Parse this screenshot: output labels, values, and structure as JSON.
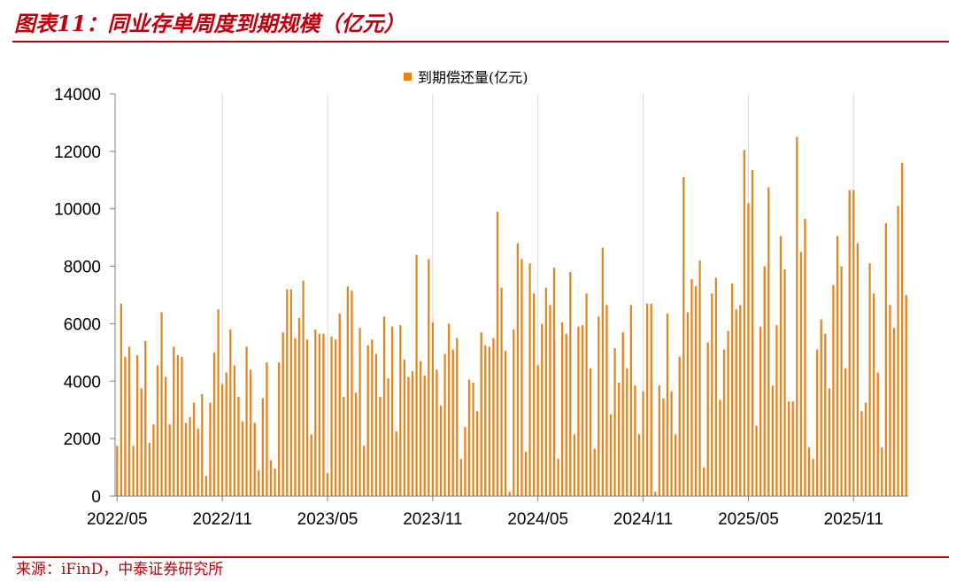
{
  "figure": {
    "title": "图表11：同业存单周度到期规模（亿元）",
    "source": "来源：iFinD，中泰证券研究所"
  },
  "colors": {
    "bar": "#e8841c",
    "accent": "#c0000c",
    "grid": "#d9d9d9",
    "axis": "#808080"
  },
  "chart_data": {
    "type": "bar",
    "legend": {
      "label": "到期偿还量(亿元)",
      "position": "top"
    },
    "grid": "vertical",
    "ylim": [
      0,
      14000
    ],
    "yticks": [
      "0",
      "2000",
      "4000",
      "6000",
      "8000",
      "10000",
      "12000",
      "14000"
    ],
    "xtick_labels": [
      "2022/05",
      "2022/11",
      "2023/05",
      "2023/11",
      "2024/05",
      "2024/11",
      "2025/05",
      "2025/11"
    ],
    "xtick_index": [
      0,
      26,
      52,
      78,
      104,
      130,
      156,
      182
    ],
    "series": [
      {
        "name": "到期偿还量(亿元)",
        "values": [
          1750,
          6700,
          4850,
          5200,
          1750,
          4900,
          3750,
          5400,
          1850,
          2500,
          4550,
          6400,
          4150,
          2500,
          5200,
          4900,
          4850,
          2550,
          2750,
          3250,
          2350,
          3550,
          700,
          3250,
          5000,
          6500,
          3900,
          4300,
          5800,
          4550,
          3450,
          2600,
          5200,
          4400,
          2550,
          900,
          3400,
          4650,
          1250,
          950,
          4650,
          5700,
          7200,
          7200,
          5500,
          6200,
          7500,
          5450,
          2150,
          5800,
          5650,
          5650,
          800,
          5550,
          5450,
          6350,
          3450,
          7300,
          7150,
          3600,
          5850,
          1750,
          5250,
          5450,
          4950,
          3450,
          6250,
          4100,
          5900,
          2250,
          5950,
          4750,
          4150,
          4350,
          8400,
          4700,
          4200,
          8250,
          6050,
          4400,
          3150,
          4950,
          6000,
          5100,
          5500,
          1300,
          2400,
          4050,
          3950,
          2950,
          5700,
          5250,
          5200,
          5500,
          9900,
          7250,
          5050,
          150,
          5800,
          8800,
          8250,
          1550,
          8100,
          7050,
          4550,
          6000,
          7250,
          6650,
          7950,
          1300,
          6050,
          5650,
          7800,
          2150,
          5900,
          5950,
          7050,
          4450,
          1650,
          6250,
          8650,
          6650,
          2850,
          5150,
          3950,
          5700,
          4450,
          6650,
          3850,
          2150,
          3650,
          6700,
          6700,
          150,
          3850,
          3400,
          6350,
          3650,
          2150,
          4850,
          11100,
          6400,
          7550,
          7300,
          8200,
          1000,
          5350,
          7050,
          7600,
          3350,
          5100,
          5750,
          7400,
          6500,
          6650,
          12050,
          10200,
          11350,
          2450,
          5900,
          8000,
          10750,
          3850,
          5950,
          9050,
          7900,
          3300,
          3300,
          12500,
          8500,
          9650,
          1700,
          1300,
          5100,
          6150,
          5650,
          3750,
          7350,
          9050,
          8000,
          4450,
          10650,
          10650,
          8800,
          2950,
          3250,
          8100,
          7050,
          4300,
          1700,
          9500,
          6650,
          5850,
          10100,
          11600,
          7000
        ]
      }
    ]
  }
}
